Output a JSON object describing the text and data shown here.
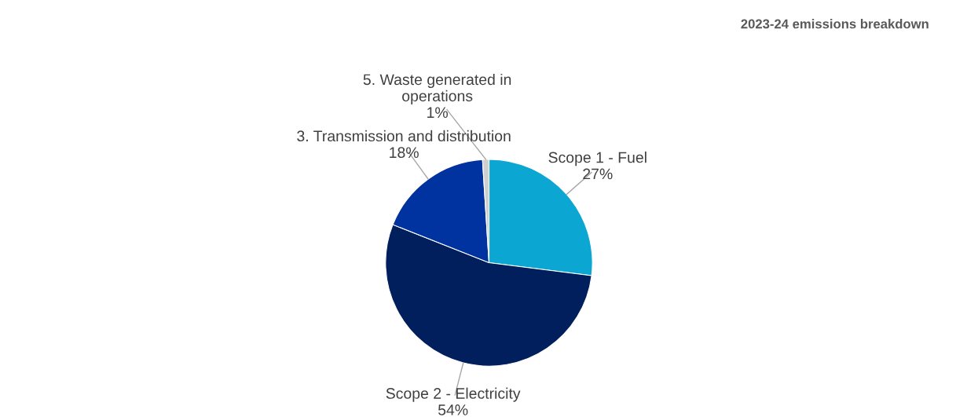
{
  "chart_data": {
    "type": "pie",
    "title": "2023-24 emissions breakdown",
    "categories": [
      "Scope 1 - Fuel",
      "Scope 2 - Electricity",
      "3. Transmission and distribution",
      "5. Waste generated in operations"
    ],
    "values": [
      27,
      54,
      18,
      1
    ],
    "value_labels": [
      "27%",
      "54%",
      "18%",
      "1%"
    ],
    "colors": [
      "#0ba6d1",
      "#001f5c",
      "#0033a0",
      "#cfcfcf"
    ],
    "legend": false
  }
}
